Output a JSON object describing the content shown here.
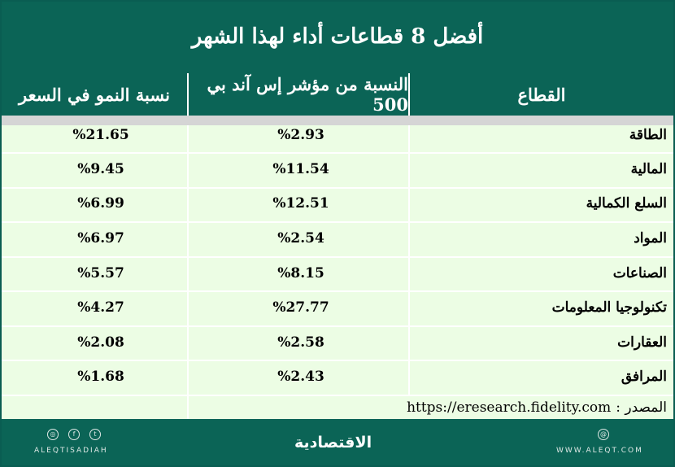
{
  "title": "أفضل 8 قطاعات أداء لهذا الشهر",
  "columns": {
    "sector": "القطاع",
    "index_share": "النسبة من مؤشر إس آند بي 500",
    "growth": "نسبة النمو في السعر"
  },
  "rows": [
    {
      "sector": "الطاقة",
      "index_share": "%2.93",
      "growth": "%21.65"
    },
    {
      "sector": "المالية",
      "index_share": "%11.54",
      "growth": "%9.45"
    },
    {
      "sector": "السلع الكمالية",
      "index_share": "%12.51",
      "growth": "%6.99"
    },
    {
      "sector": "المواد",
      "index_share": "%2.54",
      "growth": "%6.97"
    },
    {
      "sector": "الصناعات",
      "index_share": "%8.15",
      "growth": "%5.57"
    },
    {
      "sector": "تكنولوجيا المعلومات",
      "index_share": "%27.77",
      "growth": "%4.27"
    },
    {
      "sector": "العقارات",
      "index_share": "%2.58",
      "growth": "%2.08"
    },
    {
      "sector": "المرافق",
      "index_share": "%2.43",
      "growth": "%1.68"
    }
  ],
  "source": {
    "label": "المصدر :",
    "url": "https://eresearch.fidelity.com"
  },
  "footer": {
    "left_handle": "ALEQTISADIAH",
    "logo": "الاقتصادية",
    "right_site": "WWW.ALEQT.COM",
    "icons": [
      "instagram-icon",
      "facebook-icon",
      "twitter-icon",
      "globe-icon"
    ]
  },
  "colors": {
    "header_bg": "#0b6456",
    "body_bg": "#ecfde4",
    "separator": "#d5d5d5"
  }
}
